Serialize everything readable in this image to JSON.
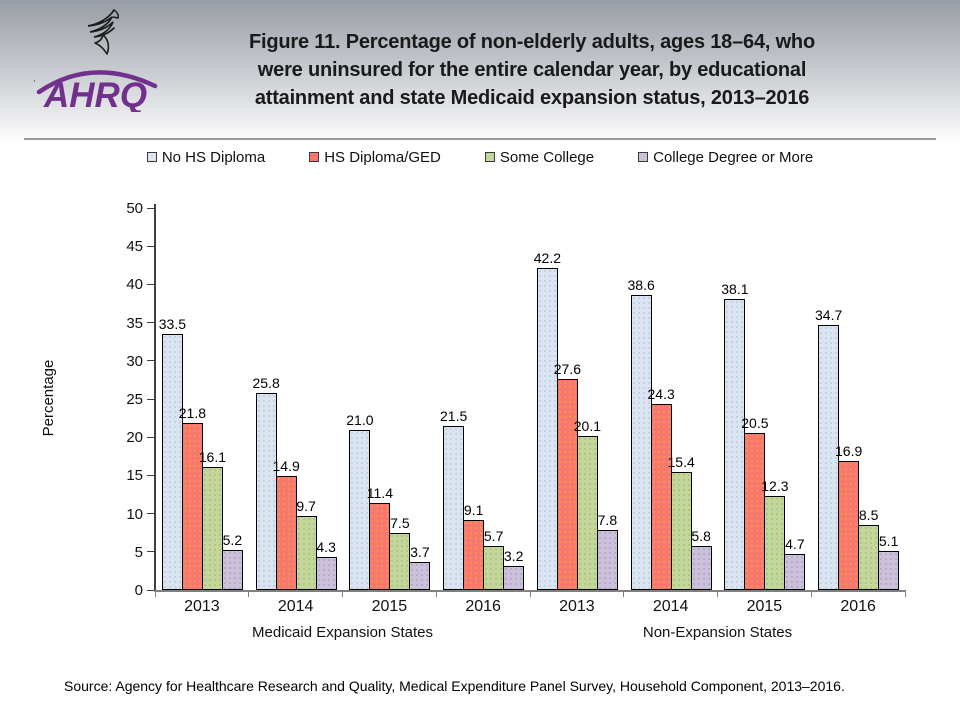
{
  "header": {
    "logo_text": "AHRQ",
    "title_lines": [
      "Figure 11. Percentage of non-elderly adults, ages 18–64, who",
      "were uninsured for the entire calendar year, by educational",
      "attainment and state Medicaid expansion status, 2013–2016"
    ]
  },
  "footer": {
    "source": "Source: Agency for Healthcare Research and Quality, Medical Expenditure Panel Survey, Household Component, 2013–2016."
  },
  "colors": {
    "accent_purple": "#70308C",
    "band_top": "#989ca4",
    "axis": "#3f3f3f",
    "baseline": "#808080"
  },
  "chart_data": {
    "type": "bar",
    "title": "Figure 11. Percentage of non-elderly adults, ages 18–64, who were uninsured for the entire calendar year, by educational attainment and state Medicaid expansion status, 2013–2016",
    "xlabel": "",
    "ylabel": "Percentage",
    "ylim": [
      0,
      50
    ],
    "ytick_step": 5,
    "grid": false,
    "legend_position": "top",
    "categories": [
      "2013",
      "2014",
      "2015",
      "2016",
      "2013",
      "2014",
      "2015",
      "2016"
    ],
    "section_labels": [
      "Medicaid Expansion States",
      "Non-Expansion States"
    ],
    "series": [
      {
        "name": "No HS Diploma",
        "color": "#DBE5F1",
        "dot_color": "#b6c9e0",
        "values": [
          33.5,
          25.8,
          21.0,
          21.5,
          42.2,
          38.6,
          38.1,
          34.7
        ]
      },
      {
        "name": "HS Diploma/GED",
        "color": "#F8786E",
        "dot_color": "#f0a049",
        "values": [
          21.8,
          14.9,
          11.4,
          9.1,
          27.6,
          24.3,
          20.5,
          16.9
        ]
      },
      {
        "name": "Some College",
        "color": "#C3D69B",
        "dot_color": "#a6bf70",
        "values": [
          16.1,
          9.7,
          7.5,
          5.7,
          20.1,
          15.4,
          12.3,
          8.5
        ]
      },
      {
        "name": "College Degree or More",
        "color": "#CCC1DA",
        "dot_color": "#af9fc6",
        "values": [
          5.2,
          4.3,
          3.7,
          3.2,
          7.8,
          5.8,
          4.7,
          5.1
        ]
      }
    ]
  }
}
